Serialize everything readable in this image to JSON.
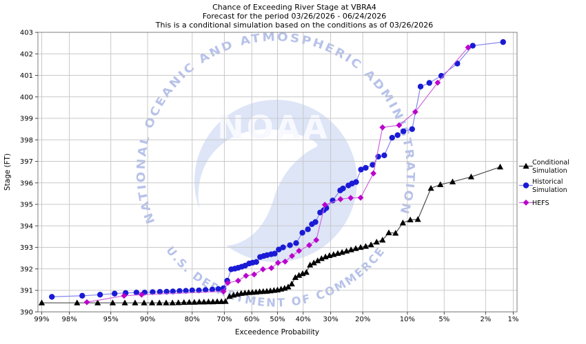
{
  "title": {
    "line1": "Chance of Exceeding River Stage at VBRA4",
    "line2": "Forecast for the period 03/26/2026 - 06/24/2026",
    "line3": "This is a conditional simulation based on the conditions as of 03/26/2026"
  },
  "watermark": {
    "arc_text_top": "NATIONAL OCEANIC AND ATMOSPHERIC ADMINISTRATION",
    "arc_text_bottom": "U.S. DEPARTMENT OF COMMERCE",
    "center_text": "NOAA",
    "circle_color": "#dde5f7",
    "arc_text_color": "#b7c2ea",
    "center_text_color": "#f7f9ff",
    "bird_color": "#ffffff"
  },
  "axes": {
    "x": {
      "label": "Exceedence Probability",
      "tick_values": [
        99,
        98,
        95,
        90,
        80,
        70,
        60,
        50,
        40,
        30,
        20,
        10,
        5,
        2,
        1
      ],
      "tick_labels": [
        "99%",
        "98%",
        "95%",
        "90%",
        "80%",
        "70%",
        "60%",
        "50%",
        "40%",
        "30%",
        "20%",
        "10%",
        "5%",
        "2%",
        "1%"
      ]
    },
    "y": {
      "label": "Stage (FT)",
      "min": 390,
      "max": 403,
      "tick_step": 1
    }
  },
  "legend": [
    {
      "id": "conditional",
      "lines": [
        "Conditional",
        "Simulation"
      ]
    },
    {
      "id": "historical",
      "lines": [
        "Historical",
        "Simulation"
      ]
    },
    {
      "id": "hefs",
      "lines": [
        "HEFS"
      ]
    }
  ],
  "colors": {
    "grid": "#c8c8c8",
    "plot_border": "#7f7f7f",
    "tick": "#444444",
    "text": "#000000"
  },
  "chart_data": {
    "type": "line",
    "x_scale": "probit",
    "x_unit": "exceedance probability (%)",
    "y_unit": "stage (FT)",
    "ylim": [
      390,
      403
    ],
    "grid": true,
    "legend_position": "right",
    "series": [
      {
        "id": "conditional",
        "name": "Conditional Simulation",
        "marker": "triangle",
        "marker_color": "#000000",
        "line_color": "#4d4d4d",
        "points": [
          [
            99.0,
            390.42
          ],
          [
            97.6,
            390.42
          ],
          [
            96.2,
            390.42
          ],
          [
            94.8,
            390.42
          ],
          [
            93.4,
            390.42
          ],
          [
            92.0,
            390.42
          ],
          [
            90.6,
            390.42
          ],
          [
            89.2,
            390.42
          ],
          [
            87.8,
            390.42
          ],
          [
            86.4,
            390.42
          ],
          [
            85.0,
            390.42
          ],
          [
            83.6,
            390.43
          ],
          [
            82.2,
            390.44
          ],
          [
            80.8,
            390.45
          ],
          [
            79.4,
            390.45
          ],
          [
            78.0,
            390.46
          ],
          [
            76.6,
            390.46
          ],
          [
            75.2,
            390.47
          ],
          [
            73.8,
            390.47
          ],
          [
            72.4,
            390.48
          ],
          [
            71.0,
            390.48
          ],
          [
            69.6,
            390.49
          ],
          [
            68.2,
            390.72
          ],
          [
            66.8,
            390.78
          ],
          [
            65.4,
            390.82
          ],
          [
            64.0,
            390.86
          ],
          [
            62.6,
            390.88
          ],
          [
            61.2,
            390.9
          ],
          [
            59.8,
            390.91
          ],
          [
            58.4,
            390.92
          ],
          [
            57.0,
            390.94
          ],
          [
            55.6,
            390.95
          ],
          [
            54.2,
            390.96
          ],
          [
            52.8,
            390.98
          ],
          [
            51.4,
            391.0
          ],
          [
            50.0,
            391.02
          ],
          [
            48.6,
            391.06
          ],
          [
            47.2,
            391.1
          ],
          [
            45.8,
            391.16
          ],
          [
            44.4,
            391.3
          ],
          [
            43.0,
            391.6
          ],
          [
            41.6,
            391.7
          ],
          [
            40.2,
            391.78
          ],
          [
            38.8,
            391.84
          ],
          [
            37.4,
            392.18
          ],
          [
            36.0,
            392.28
          ],
          [
            34.6,
            392.38
          ],
          [
            33.2,
            392.48
          ],
          [
            31.8,
            392.56
          ],
          [
            30.4,
            392.62
          ],
          [
            29.0,
            392.67
          ],
          [
            27.6,
            392.72
          ],
          [
            26.2,
            392.77
          ],
          [
            24.8,
            392.83
          ],
          [
            23.4,
            392.89
          ],
          [
            22.0,
            392.95
          ],
          [
            20.6,
            393.0
          ],
          [
            19.2,
            393.05
          ],
          [
            17.8,
            393.12
          ],
          [
            16.4,
            393.25
          ],
          [
            15.0,
            393.34
          ],
          [
            13.6,
            393.68
          ],
          [
            12.2,
            393.66
          ],
          [
            10.8,
            394.14
          ],
          [
            9.5,
            394.28
          ],
          [
            8.3,
            394.3
          ],
          [
            6.5,
            395.75
          ],
          [
            5.4,
            395.92
          ],
          [
            4.2,
            396.05
          ],
          [
            2.8,
            396.28
          ],
          [
            1.4,
            396.74
          ]
        ]
      },
      {
        "id": "historical",
        "name": "Historical Simulation",
        "marker": "circle",
        "marker_color": "#1a1ad6",
        "line_color": "#8585ef",
        "points": [
          [
            98.7,
            390.7
          ],
          [
            97.3,
            390.75
          ],
          [
            96.0,
            390.8
          ],
          [
            94.6,
            390.85
          ],
          [
            93.3,
            390.88
          ],
          [
            91.8,
            390.9
          ],
          [
            90.5,
            390.9
          ],
          [
            89.1,
            390.92
          ],
          [
            87.7,
            390.93
          ],
          [
            86.3,
            390.94
          ],
          [
            84.9,
            390.95
          ],
          [
            83.3,
            390.97
          ],
          [
            81.7,
            390.98
          ],
          [
            80.0,
            391.0
          ],
          [
            78.1,
            391.0
          ],
          [
            76.1,
            391.02
          ],
          [
            74.0,
            391.04
          ],
          [
            72.0,
            391.06
          ],
          [
            70.3,
            391.1
          ],
          [
            69.0,
            391.45
          ],
          [
            67.6,
            391.98
          ],
          [
            66.3,
            392.01
          ],
          [
            65.1,
            392.05
          ],
          [
            63.8,
            392.1
          ],
          [
            62.5,
            392.15
          ],
          [
            61.0,
            392.25
          ],
          [
            59.7,
            392.29
          ],
          [
            58.3,
            392.32
          ],
          [
            56.8,
            392.55
          ],
          [
            55.4,
            392.6
          ],
          [
            54.1,
            392.64
          ],
          [
            52.5,
            392.68
          ],
          [
            51.1,
            392.71
          ],
          [
            49.5,
            392.9
          ],
          [
            47.8,
            393.0
          ],
          [
            45.1,
            393.1
          ],
          [
            42.7,
            393.2
          ],
          [
            40.3,
            393.68
          ],
          [
            38.2,
            393.84
          ],
          [
            36.7,
            394.08
          ],
          [
            35.4,
            394.18
          ],
          [
            33.7,
            394.62
          ],
          [
            32.4,
            394.73
          ],
          [
            31.5,
            394.83
          ],
          [
            29.3,
            395.18
          ],
          [
            26.8,
            395.65
          ],
          [
            25.9,
            395.74
          ],
          [
            24.2,
            395.88
          ],
          [
            23.1,
            395.97
          ],
          [
            21.9,
            396.04
          ],
          [
            20.5,
            396.62
          ],
          [
            19.2,
            396.7
          ],
          [
            17.4,
            396.84
          ],
          [
            16.0,
            397.22
          ],
          [
            14.6,
            397.28
          ],
          [
            12.9,
            398.1
          ],
          [
            11.8,
            398.22
          ],
          [
            10.7,
            398.4
          ],
          [
            9.2,
            398.5
          ],
          [
            7.9,
            400.48
          ],
          [
            6.7,
            400.65
          ],
          [
            5.3,
            400.98
          ],
          [
            3.8,
            401.55
          ],
          [
            2.7,
            402.38
          ],
          [
            1.3,
            402.55
          ]
        ]
      },
      {
        "id": "hefs",
        "name": "HEFS",
        "marker": "diamond",
        "marker_color": "#bb00cc",
        "line_color": "#cc66dd",
        "points": [
          [
            97.0,
            390.45
          ],
          [
            93.5,
            390.75
          ],
          [
            91.0,
            390.8
          ],
          [
            70.3,
            390.95
          ],
          [
            68.8,
            391.35
          ],
          [
            65.1,
            391.45
          ],
          [
            62.2,
            391.68
          ],
          [
            59.1,
            391.74
          ],
          [
            55.7,
            391.98
          ],
          [
            52.4,
            392.04
          ],
          [
            49.8,
            392.28
          ],
          [
            47.0,
            392.34
          ],
          [
            44.3,
            392.6
          ],
          [
            41.6,
            392.84
          ],
          [
            37.7,
            393.1
          ],
          [
            35.1,
            393.34
          ],
          [
            32.0,
            394.98
          ],
          [
            26.7,
            395.24
          ],
          [
            23.5,
            395.3
          ],
          [
            20.6,
            395.31
          ],
          [
            17.2,
            396.44
          ],
          [
            15.0,
            398.58
          ],
          [
            11.5,
            398.68
          ],
          [
            8.7,
            399.3
          ],
          [
            5.7,
            400.66
          ],
          [
            3.0,
            402.3
          ]
        ]
      }
    ]
  }
}
